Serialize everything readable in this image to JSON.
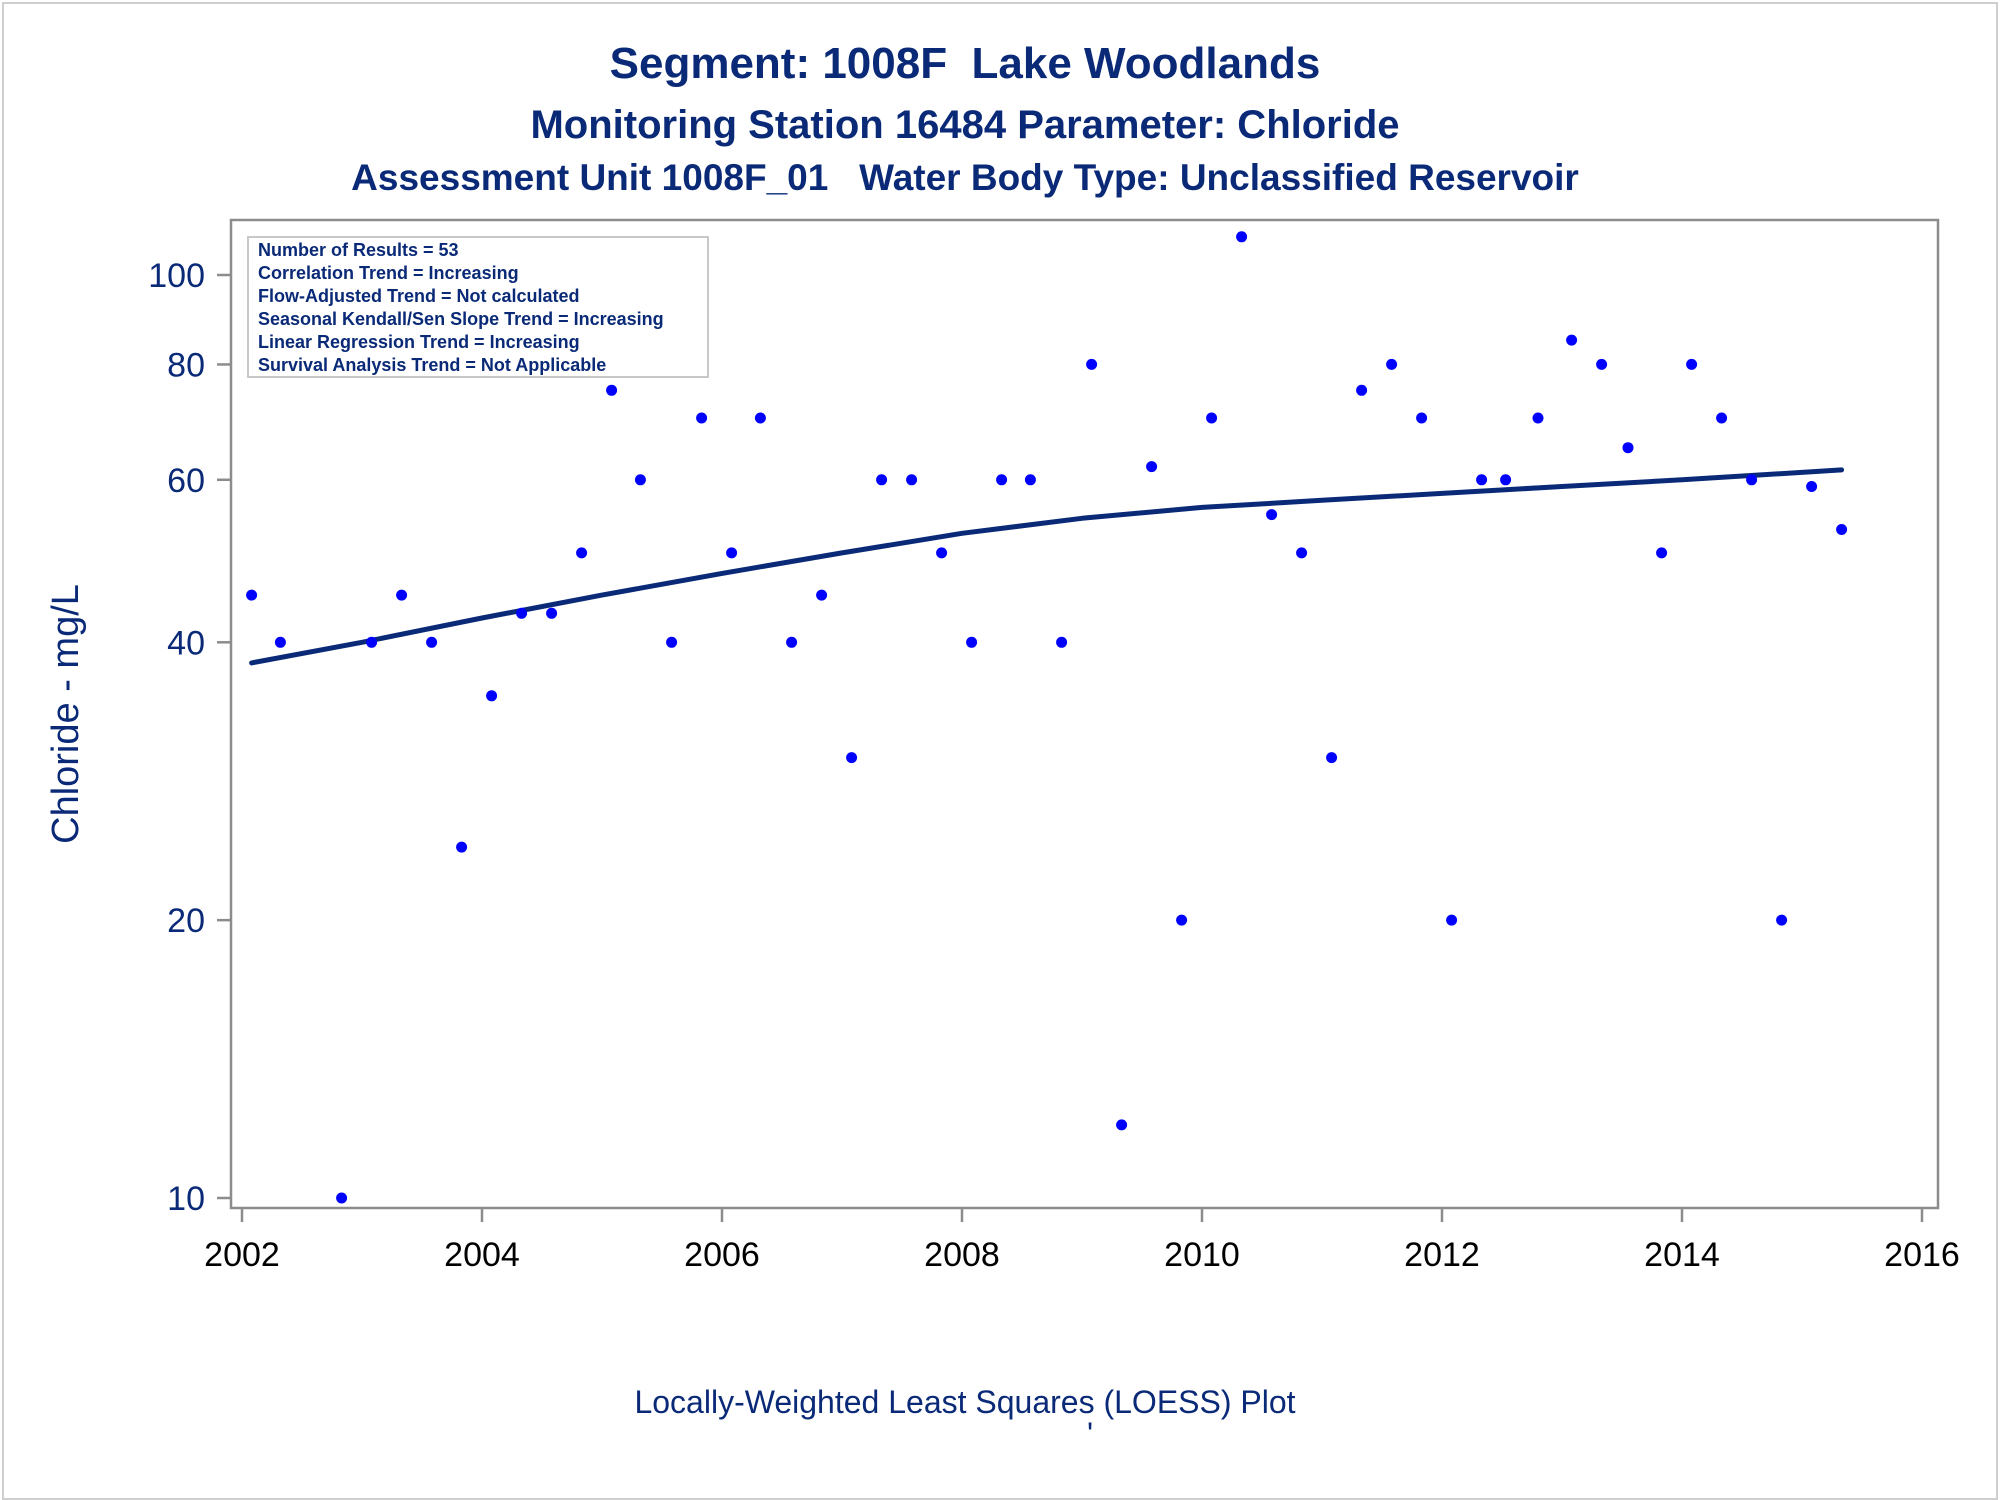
{
  "chart_data": {
    "type": "scatter",
    "title": "Segment: 1008F  Lake Woodlands",
    "subtitle": "Monitoring Station 16484 Parameter: Chloride",
    "subtitle2": "Assessment Unit 1008F_01   Water Body Type: Unclassified Reservoir",
    "xlabel": "",
    "ylabel": "Chloride - mg/L",
    "footnote": "Locally-Weighted Least Squares (LOESS) Plot",
    "footnote_mark": "'",
    "y_scale": "log",
    "xlim": [
      2002,
      2016
    ],
    "ylim": [
      9.8,
      118
    ],
    "x_ticks": [
      "2002",
      "2004",
      "2006",
      "2008",
      "2010",
      "2012",
      "2014",
      "2016"
    ],
    "y_ticks": [
      "10",
      "20",
      "40",
      "60",
      "80",
      "100"
    ],
    "y_tick_values": [
      10,
      20,
      40,
      60,
      80,
      100
    ],
    "grid": false,
    "legend_position": "top-left",
    "stats_box": [
      "Number of Results = 53",
      "Correlation Trend = Increasing",
      "Flow-Adjusted Trend = Not calculated",
      "Seasonal Kendall/Sen Slope Trend = Increasing",
      "Linear Regression Trend = Increasing",
      "Survival Analysis Trend = Not Applicable"
    ],
    "points": [
      {
        "x": 2002.08,
        "y": 45
      },
      {
        "x": 2002.32,
        "y": 40
      },
      {
        "x": 2002.83,
        "y": 10
      },
      {
        "x": 2003.08,
        "y": 40
      },
      {
        "x": 2003.33,
        "y": 45
      },
      {
        "x": 2003.58,
        "y": 40
      },
      {
        "x": 2003.83,
        "y": 24
      },
      {
        "x": 2004.08,
        "y": 35
      },
      {
        "x": 2004.33,
        "y": 43
      },
      {
        "x": 2004.58,
        "y": 43
      },
      {
        "x": 2004.83,
        "y": 50
      },
      {
        "x": 2005.08,
        "y": 75
      },
      {
        "x": 2005.32,
        "y": 60
      },
      {
        "x": 2005.58,
        "y": 40
      },
      {
        "x": 2005.83,
        "y": 70
      },
      {
        "x": 2006.08,
        "y": 50
      },
      {
        "x": 2006.32,
        "y": 70
      },
      {
        "x": 2006.58,
        "y": 40
      },
      {
        "x": 2006.83,
        "y": 45
      },
      {
        "x": 2007.08,
        "y": 30
      },
      {
        "x": 2007.33,
        "y": 60
      },
      {
        "x": 2007.58,
        "y": 60
      },
      {
        "x": 2007.83,
        "y": 50
      },
      {
        "x": 2008.08,
        "y": 40
      },
      {
        "x": 2008.33,
        "y": 60
      },
      {
        "x": 2008.57,
        "y": 60
      },
      {
        "x": 2008.83,
        "y": 40
      },
      {
        "x": 2009.08,
        "y": 80
      },
      {
        "x": 2009.33,
        "y": 12
      },
      {
        "x": 2009.58,
        "y": 62
      },
      {
        "x": 2009.83,
        "y": 20
      },
      {
        "x": 2010.08,
        "y": 70
      },
      {
        "x": 2010.33,
        "y": 110
      },
      {
        "x": 2010.58,
        "y": 55
      },
      {
        "x": 2010.83,
        "y": 50
      },
      {
        "x": 2011.08,
        "y": 30
      },
      {
        "x": 2011.33,
        "y": 75
      },
      {
        "x": 2011.58,
        "y": 80
      },
      {
        "x": 2011.83,
        "y": 70
      },
      {
        "x": 2012.08,
        "y": 20
      },
      {
        "x": 2012.33,
        "y": 60
      },
      {
        "x": 2012.53,
        "y": 60
      },
      {
        "x": 2012.8,
        "y": 70
      },
      {
        "x": 2013.08,
        "y": 85
      },
      {
        "x": 2013.33,
        "y": 80
      },
      {
        "x": 2013.55,
        "y": 65
      },
      {
        "x": 2013.83,
        "y": 50
      },
      {
        "x": 2014.08,
        "y": 80
      },
      {
        "x": 2014.33,
        "y": 70
      },
      {
        "x": 2014.58,
        "y": 60
      },
      {
        "x": 2014.83,
        "y": 20
      },
      {
        "x": 2015.08,
        "y": 59
      },
      {
        "x": 2015.33,
        "y": 53
      }
    ],
    "loess": {
      "name": "LOESS",
      "x": [
        2002.08,
        2003.0,
        2004.0,
        2005.0,
        2006.0,
        2007.0,
        2008.0,
        2009.0,
        2010.0,
        2011.0,
        2012.0,
        2013.0,
        2014.0,
        2015.33
      ],
      "y": [
        38,
        40,
        42.5,
        45,
        47.5,
        50,
        52.5,
        54.5,
        56,
        57,
        58,
        59,
        60,
        61.5
      ]
    },
    "colors": {
      "points": "#0000ff",
      "loess": "#0a2a78",
      "axis": "#8c8c8c",
      "text": "#0a2a78"
    }
  }
}
